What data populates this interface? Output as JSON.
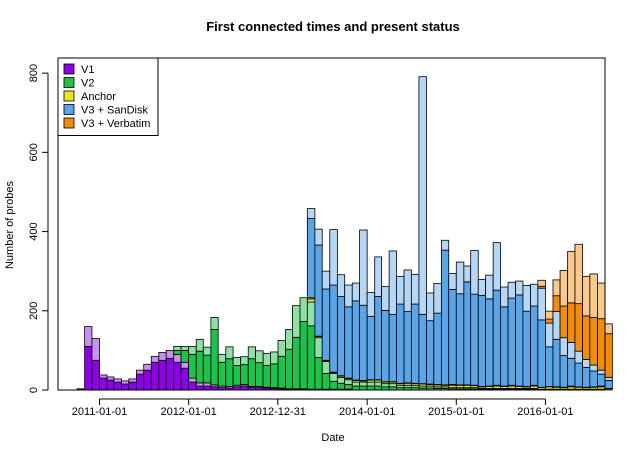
{
  "chart_data": {
    "type": "bar",
    "stacked": true,
    "title": "First connected times and present status",
    "xlabel": "Date",
    "ylabel": "Number of probes",
    "ylim": [
      0,
      850
    ],
    "xlim": [
      "2010-07-15",
      "2016-09-01"
    ],
    "y_ticks": [
      0,
      200,
      400,
      600,
      800
    ],
    "x_ticks": [
      {
        "label": "2011-01-01",
        "date": "2011-01-01"
      },
      {
        "label": "2012-01-01",
        "date": "2012-01-01"
      },
      {
        "label": "2012-12-31",
        "date": "2012-12-31"
      },
      {
        "label": "2014-01-01",
        "date": "2014-01-01"
      },
      {
        "label": "2015-01-01",
        "date": "2015-01-01"
      },
      {
        "label": "2016-01-01",
        "date": "2016-01-01"
      }
    ],
    "grid": false,
    "legend_position": "top-left",
    "bin": "month",
    "start_month": "2010-10",
    "layer_note": "Each series has a darker part (still connected) and a lighter part (disconnected)",
    "series": [
      {
        "name": "V1",
        "color_dark": "#8b00e6",
        "color_light": "#c792ed",
        "connected": [
          3,
          110,
          75,
          30,
          25,
          20,
          15,
          20,
          40,
          50,
          70,
          75,
          80,
          70,
          55,
          20,
          10,
          10,
          8,
          6,
          5,
          8,
          10,
          6,
          6,
          5,
          4,
          3,
          2,
          2,
          2,
          1,
          1,
          1,
          1,
          1,
          1,
          0,
          0,
          0,
          0,
          0,
          0,
          0,
          0,
          0,
          0,
          0,
          0,
          0,
          0,
          0,
          0,
          0,
          0,
          0,
          0,
          0,
          0,
          0,
          0,
          0,
          0,
          0,
          0,
          0,
          0,
          0,
          0,
          0,
          0,
          0
        ],
        "disconnected": [
          0,
          50,
          55,
          8,
          8,
          8,
          8,
          8,
          10,
          15,
          15,
          20,
          20,
          20,
          15,
          10,
          8,
          8,
          5,
          4,
          4,
          4,
          4,
          3,
          3,
          2,
          2,
          2,
          1,
          1,
          1,
          1,
          1,
          1,
          1,
          1,
          1,
          0,
          0,
          0,
          0,
          0,
          0,
          0,
          0,
          0,
          0,
          0,
          0,
          0,
          0,
          0,
          0,
          0,
          0,
          0,
          0,
          0,
          0,
          0,
          0,
          0,
          0,
          0,
          0,
          0,
          0,
          0,
          0,
          0,
          0,
          0
        ]
      },
      {
        "name": "V2",
        "color_dark": "#1ec24a",
        "color_light": "#8fe0a5",
        "connected": [
          0,
          0,
          0,
          0,
          0,
          0,
          0,
          0,
          0,
          0,
          0,
          0,
          0,
          10,
          30,
          60,
          80,
          70,
          140,
          60,
          70,
          50,
          50,
          70,
          60,
          55,
          60,
          80,
          100,
          130,
          170,
          160,
          80,
          40,
          20,
          15,
          12,
          10,
          10,
          10,
          10,
          8,
          8,
          6,
          6,
          6,
          5,
          5,
          4,
          4,
          3,
          3,
          3,
          3,
          2,
          2,
          2,
          2,
          2,
          2,
          2,
          2,
          1,
          1,
          1,
          1,
          1,
          1,
          1,
          1,
          1,
          0
        ],
        "disconnected": [
          0,
          0,
          0,
          0,
          0,
          0,
          0,
          0,
          0,
          0,
          0,
          0,
          0,
          10,
          10,
          20,
          30,
          20,
          30,
          20,
          30,
          20,
          20,
          30,
          30,
          30,
          30,
          40,
          50,
          80,
          60,
          60,
          50,
          30,
          20,
          15,
          12,
          10,
          10,
          10,
          10,
          8,
          8,
          6,
          6,
          6,
          5,
          5,
          4,
          4,
          3,
          3,
          3,
          3,
          2,
          2,
          2,
          2,
          2,
          2,
          2,
          2,
          1,
          1,
          1,
          1,
          1,
          1,
          1,
          1,
          1,
          0
        ]
      },
      {
        "name": "Anchor",
        "color_dark": "#e8e829",
        "color_light": "#f5f59a",
        "connected": [
          0,
          0,
          0,
          0,
          0,
          0,
          0,
          0,
          0,
          0,
          0,
          0,
          0,
          0,
          0,
          0,
          0,
          0,
          0,
          0,
          0,
          0,
          0,
          0,
          0,
          0,
          0,
          0,
          0,
          0,
          0,
          8,
          3,
          2,
          2,
          3,
          3,
          4,
          3,
          5,
          5,
          4,
          4,
          4,
          5,
          4,
          5,
          4,
          5,
          4,
          6,
          6,
          6,
          5,
          4,
          5,
          6,
          5,
          6,
          5,
          4,
          6,
          4,
          6,
          5,
          4,
          6,
          5,
          4,
          5,
          6,
          3
        ],
        "disconnected": [
          0,
          0,
          0,
          0,
          0,
          0,
          0,
          0,
          0,
          0,
          0,
          0,
          0,
          0,
          0,
          0,
          0,
          0,
          0,
          0,
          0,
          0,
          0,
          0,
          0,
          0,
          0,
          0,
          0,
          0,
          0,
          3,
          1,
          1,
          1,
          1,
          1,
          1,
          1,
          1,
          1,
          1,
          1,
          1,
          1,
          1,
          1,
          1,
          1,
          1,
          2,
          1,
          1,
          1,
          1,
          1,
          2,
          1,
          2,
          1,
          1,
          2,
          1,
          1,
          1,
          1,
          2,
          1,
          1,
          1,
          2,
          1
        ]
      },
      {
        "name": "V3 + SanDisk",
        "color_dark": "#5aa5e8",
        "color_light": "#b5d6f4",
        "connected": [
          0,
          0,
          0,
          0,
          0,
          0,
          0,
          0,
          0,
          0,
          0,
          0,
          0,
          0,
          0,
          0,
          0,
          0,
          0,
          0,
          0,
          0,
          0,
          0,
          0,
          0,
          0,
          0,
          0,
          0,
          0,
          200,
          230,
          180,
          220,
          200,
          180,
          200,
          190,
          160,
          210,
          180,
          170,
          200,
          180,
          200,
          175,
          160,
          180,
          340,
          240,
          230,
          260,
          230,
          230,
          220,
          240,
          200,
          220,
          230,
          190,
          200,
          170,
          100,
          120,
          80,
          70,
          60,
          50,
          40,
          30,
          20
        ],
        "disconnected": [
          0,
          0,
          0,
          0,
          0,
          0,
          0,
          0,
          0,
          0,
          0,
          0,
          0,
          0,
          0,
          0,
          0,
          0,
          0,
          0,
          0,
          0,
          0,
          0,
          0,
          0,
          0,
          0,
          0,
          0,
          0,
          25,
          40,
          45,
          140,
          55,
          55,
          45,
          190,
          60,
          100,
          60,
          160,
          70,
          105,
          75,
          600,
          70,
          75,
          25,
          40,
          80,
          40,
          110,
          40,
          60,
          120,
          50,
          40,
          35,
          65,
          55,
          80,
          60,
          70,
          45,
          40,
          30,
          20,
          15,
          10,
          8
        ]
      },
      {
        "name": "V3 + Verbatim",
        "color_dark": "#f28c0f",
        "color_light": "#f8c98a",
        "connected": [
          0,
          0,
          0,
          0,
          0,
          0,
          0,
          0,
          0,
          0,
          0,
          0,
          0,
          0,
          0,
          0,
          0,
          0,
          0,
          0,
          0,
          0,
          0,
          0,
          0,
          0,
          0,
          0,
          0,
          0,
          0,
          0,
          0,
          0,
          0,
          0,
          0,
          0,
          0,
          0,
          0,
          0,
          0,
          0,
          0,
          0,
          0,
          0,
          0,
          0,
          0,
          0,
          0,
          0,
          0,
          0,
          0,
          0,
          0,
          0,
          0,
          0,
          5,
          10,
          40,
          80,
          100,
          120,
          110,
          120,
          130,
          110
        ],
        "disconnected": [
          0,
          0,
          0,
          0,
          0,
          0,
          0,
          0,
          0,
          0,
          0,
          0,
          0,
          0,
          0,
          0,
          0,
          0,
          0,
          0,
          0,
          0,
          0,
          0,
          0,
          0,
          0,
          0,
          0,
          0,
          0,
          0,
          0,
          0,
          0,
          0,
          0,
          0,
          0,
          0,
          0,
          0,
          0,
          0,
          0,
          0,
          0,
          0,
          0,
          0,
          0,
          0,
          0,
          0,
          0,
          0,
          0,
          0,
          0,
          0,
          0,
          0,
          15,
          20,
          40,
          90,
          130,
          150,
          100,
          110,
          90,
          25
        ]
      }
    ]
  }
}
